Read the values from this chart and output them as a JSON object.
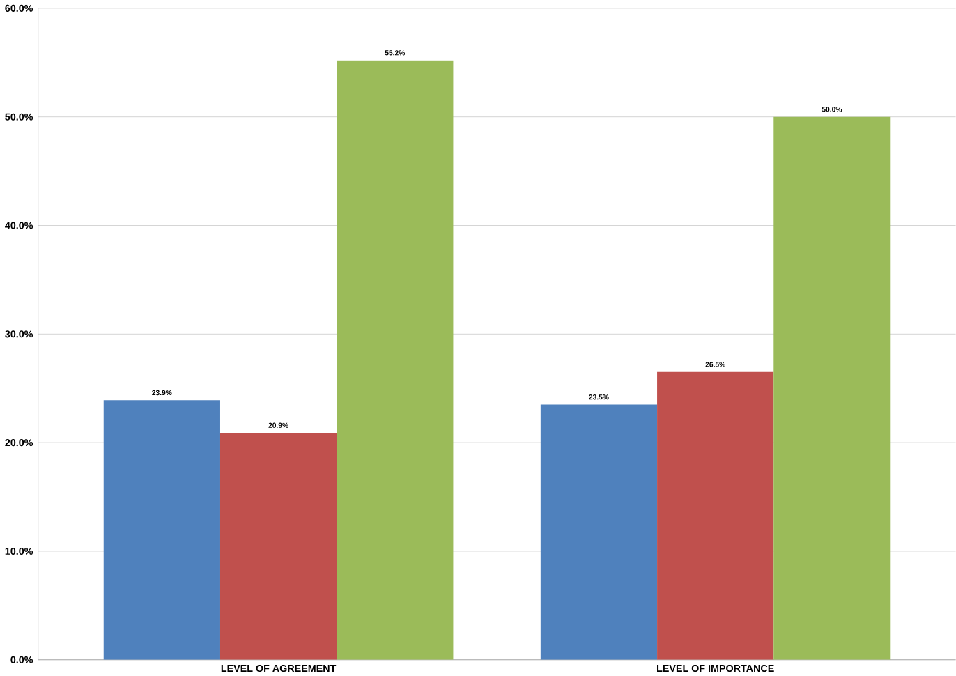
{
  "chart_data": {
    "type": "bar",
    "categories": [
      "LEVEL OF AGREEMENT",
      "LEVEL OF IMPORTANCE"
    ],
    "series": [
      {
        "color": "#4f81bd",
        "values": [
          23.9,
          23.5
        ],
        "value_labels": [
          "23.9%",
          "23.5%"
        ]
      },
      {
        "color": "#c0504d",
        "values": [
          20.9,
          26.5
        ],
        "value_labels": [
          "20.9%",
          "26.5%"
        ]
      },
      {
        "color": "#9bbb59",
        "values": [
          55.2,
          50.0
        ],
        "value_labels": [
          "55.2%",
          "50.0%"
        ]
      }
    ],
    "ylim": [
      0,
      60
    ],
    "yticks": [
      {
        "value": 0,
        "label": "0.0%"
      },
      {
        "value": 10,
        "label": "10.0%"
      },
      {
        "value": 20,
        "label": "20.0%"
      },
      {
        "value": 30,
        "label": "30.0%"
      },
      {
        "value": 40,
        "label": "40.0%"
      },
      {
        "value": 50,
        "label": "50.0%"
      },
      {
        "value": 60,
        "label": "60.0%"
      }
    ],
    "grid": "y",
    "legend": false
  }
}
